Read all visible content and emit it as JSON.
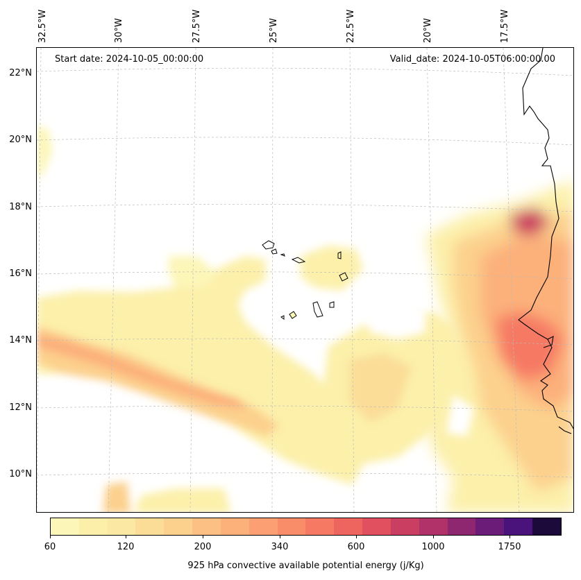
{
  "map": {
    "start_label": "Start date: 2024-10-05_00:00:00",
    "valid_label": "Valid_date: 2024-10-05T06:00:00.00",
    "lon_labels": [
      "32.5°W",
      "30°W",
      "27.5°W",
      "25°W",
      "22.5°W",
      "20°W",
      "17.5°W"
    ],
    "lat_labels": [
      "22°N",
      "20°N",
      "18°N",
      "16°N",
      "14°N",
      "12°N",
      "10°N"
    ],
    "variable": "925 hPa convective available potential energy (j/Kg)"
  },
  "colorbar": {
    "tick_labels": [
      "60",
      "120",
      "200",
      "340",
      "600",
      "1000",
      "1750"
    ],
    "colors": [
      "#fcf6b8",
      "#fbefaa",
      "#fbe8a2",
      "#fbdd97",
      "#fcd08d",
      "#fcc084",
      "#fcb07a",
      "#fc9f72",
      "#fa8d69",
      "#f67963",
      "#ee645f",
      "#e1505f",
      "#ca3e62",
      "#b03268",
      "#8f2770",
      "#6b1c78",
      "#49137b",
      "#1c0b3a"
    ]
  }
}
